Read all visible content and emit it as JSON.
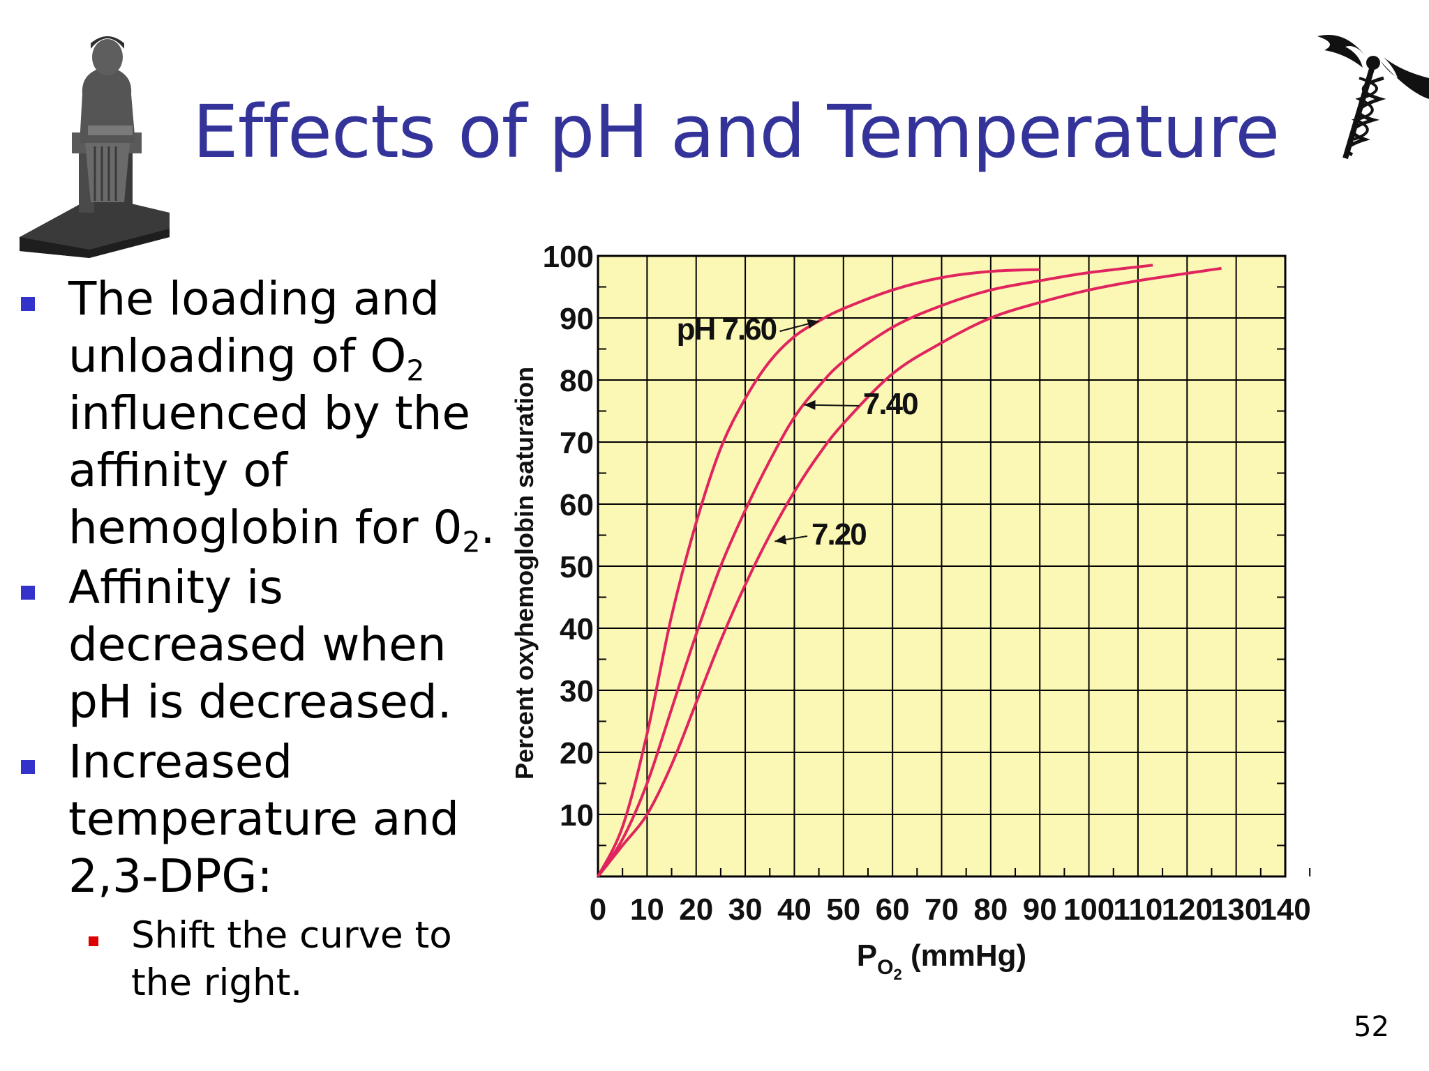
{
  "slide": {
    "title": "Effects of pH and Temperature",
    "page_number": "52"
  },
  "bullets": {
    "item1": {
      "text_a": "The loading and unloading of O",
      "sub_a": "2",
      "text_b": " influenced by the affinity of hemoglobin for 0",
      "sub_b": "2",
      "text_c": "."
    },
    "item2": {
      "text": "Affinity is decreased when pH is decreased."
    },
    "item3": {
      "text": "Increased temperature and 2,3-DPG:"
    },
    "item3_sub": {
      "text": "Shift the curve to the right."
    }
  },
  "icons": {
    "statue": "seated-scribe-statue-icon",
    "caduceus": "caduceus-icon"
  },
  "colors": {
    "title": "#333399",
    "bullet_marker": "#3333cc",
    "sub_bullet_marker": "#dd0000",
    "plot_background": "#fbf7b5",
    "curve": "#e0245e",
    "grid": "#000000"
  },
  "chart_data": {
    "type": "line",
    "xlabel_main": "P",
    "xlabel_sub": "O",
    "xlabel_subsub": "2",
    "xlabel_rest": " (mmHg)",
    "ylabel": "Percent oxyhemoglobin saturation",
    "xlim": [
      0,
      140
    ],
    "ylim": [
      0,
      100
    ],
    "xticks": [
      0,
      10,
      20,
      30,
      40,
      50,
      60,
      70,
      80,
      90,
      100,
      110,
      120,
      130,
      140
    ],
    "yticks": [
      10,
      20,
      30,
      40,
      50,
      60,
      70,
      80,
      90,
      100
    ],
    "grid": true,
    "series": [
      {
        "name": "pH 7.60",
        "x": [
          0,
          5,
          10,
          15,
          20,
          25,
          30,
          35,
          40,
          45,
          50,
          60,
          70,
          80,
          90
        ],
        "y": [
          0,
          8,
          23,
          42,
          57,
          69,
          77,
          83,
          87,
          89.5,
          91.5,
          94.5,
          96.5,
          97.5,
          97.8
        ]
      },
      {
        "name": "7.40",
        "x": [
          0,
          5,
          10,
          15,
          20,
          25,
          30,
          35,
          40,
          45,
          50,
          60,
          70,
          80,
          90,
          100,
          113
        ],
        "y": [
          0,
          6,
          15,
          27,
          39,
          50,
          59,
          67,
          74,
          79,
          83,
          88.5,
          92,
          94.5,
          96,
          97.3,
          98.5
        ]
      },
      {
        "name": "7.20",
        "x": [
          0,
          5,
          10,
          15,
          20,
          25,
          30,
          35,
          40,
          45,
          50,
          60,
          70,
          80,
          90,
          100,
          110,
          127
        ],
        "y": [
          0,
          5,
          10,
          18,
          28,
          38,
          47,
          55,
          62,
          68,
          73,
          81,
          86,
          90,
          92.5,
          94.5,
          96,
          98
        ]
      }
    ],
    "annotations": [
      {
        "text": "pH 7.60",
        "target_x": 45,
        "target_y": 89.5
      },
      {
        "text": "7.40",
        "target_x": 42,
        "target_y": 76
      },
      {
        "text": "7.20",
        "target_x": 36,
        "target_y": 54
      }
    ]
  }
}
